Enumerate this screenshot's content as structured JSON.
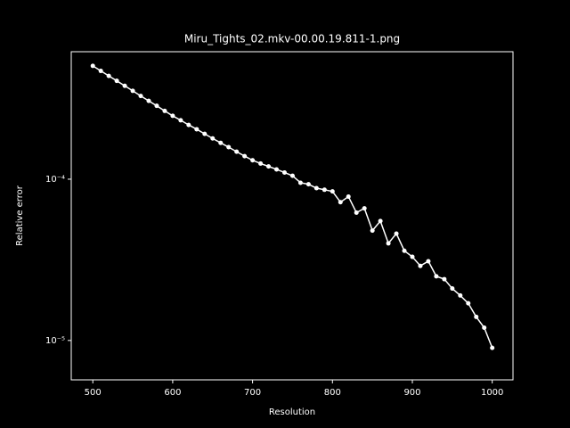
{
  "chart_data": {
    "type": "line",
    "title": "Miru_Tights_02.mkv-00.00.19.811-1.png",
    "xlabel": "Resolution",
    "ylabel": "Relative error",
    "x": [
      500,
      510,
      520,
      530,
      540,
      550,
      560,
      570,
      580,
      590,
      600,
      610,
      620,
      630,
      640,
      650,
      660,
      670,
      680,
      690,
      700,
      710,
      720,
      730,
      740,
      750,
      760,
      770,
      780,
      790,
      800,
      810,
      820,
      830,
      840,
      850,
      860,
      870,
      880,
      890,
      900,
      910,
      920,
      930,
      940,
      950,
      960,
      970,
      980,
      990,
      1000
    ],
    "series": [
      {
        "name": "Relative error",
        "color": "#ffffff",
        "values": [
          0.000504,
          0.000469,
          0.000437,
          0.000407,
          0.000379,
          0.000353,
          0.000328,
          0.000306,
          0.000285,
          0.000265,
          0.000247,
          0.000232,
          0.000217,
          0.000204,
          0.000191,
          0.000179,
          0.000168,
          0.000158,
          0.000148,
          0.000139,
          0.000131,
          0.000125,
          0.00012,
          0.000115,
          0.00011,
          0.000105,
          9.5e-05,
          9.3e-05,
          8.8e-05,
          8.6e-05,
          8.4e-05,
          7.2e-05,
          7.8e-05,
          6.2e-05,
          6.6e-05,
          4.8e-05,
          5.5e-05,
          4e-05,
          4.6e-05,
          3.6e-05,
          3.3e-05,
          2.9e-05,
          3.1e-05,
          2.5e-05,
          2.4e-05,
          2.1e-05,
          1.9e-05,
          1.7e-05,
          1.4e-05,
          1.2e-05,
          9e-06
        ]
      }
    ],
    "xlim": [
      473,
      1026
    ],
    "xticks": [
      500,
      600,
      700,
      800,
      900,
      1000
    ],
    "ylim": [
      5.7e-06,
      0.000617
    ],
    "log_y": true,
    "yticks": [
      {
        "value": 1e-05,
        "label": "10⁻⁵"
      },
      {
        "value": 0.0001,
        "label": "10⁻⁴"
      }
    ]
  }
}
